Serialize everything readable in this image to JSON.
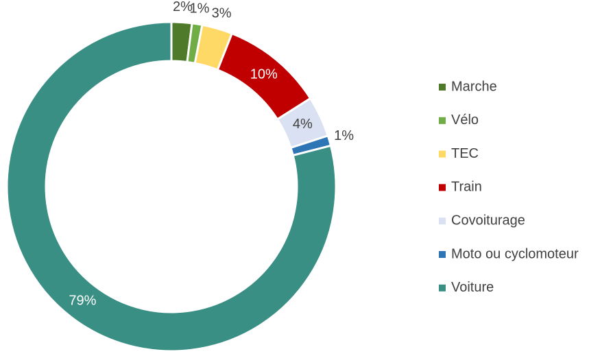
{
  "chart_data": {
    "type": "donut",
    "categories": [
      "Marche",
      "Vélo",
      "TEC",
      "Train",
      "Covoiturage",
      "Moto ou cyclomoteur",
      "Voiture"
    ],
    "values": [
      2,
      1,
      3,
      10,
      4,
      1,
      79
    ],
    "value_labels": [
      "2%",
      "1%",
      "3%",
      "10%",
      "4%",
      "1%",
      "79%"
    ],
    "colors": [
      "#4e7a2a",
      "#70ad47",
      "#ffd966",
      "#c00000",
      "#d9e1f2",
      "#2e75b6",
      "#3a8f84"
    ],
    "legend": "right"
  }
}
